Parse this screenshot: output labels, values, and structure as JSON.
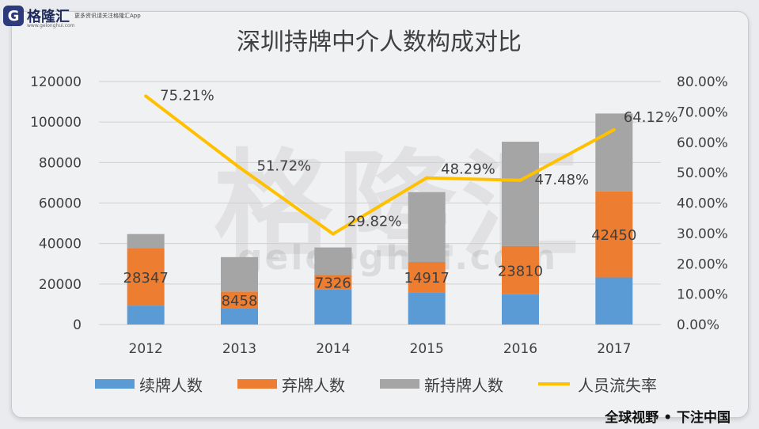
{
  "branding": {
    "logo_mark": "G",
    "logo_name": "格隆汇",
    "logo_tagline": "更多资讯请关注格隆汇App",
    "logo_url": "www.gelonghui.com",
    "watermark": "格隆汇",
    "watermark_url": "gelonghui.com",
    "slogan": "全球视野 • 下注中国"
  },
  "colors": {
    "renewal": "#5b9bd5",
    "abandon": "#ed7d31",
    "new": "#a5a5a5",
    "loss_rate": "#ffc000"
  },
  "chart_data": {
    "type": "bar",
    "stacked": true,
    "title": "深圳持牌中介人数构成对比",
    "categories": [
      "2012",
      "2013",
      "2014",
      "2015",
      "2016",
      "2017"
    ],
    "series": [
      {
        "name": "续牌人数",
        "type": "bar",
        "axis": "left",
        "values": [
          9343,
          7827,
          17242,
          15972,
          14956,
          23252
        ]
      },
      {
        "name": "弃牌人数",
        "type": "bar",
        "axis": "left",
        "values": [
          28347,
          8458,
          7326,
          14917,
          23810,
          42450
        ]
      },
      {
        "name": "新持牌人数",
        "type": "bar",
        "axis": "left",
        "values": [
          7000,
          17000,
          13500,
          34500,
          51500,
          38500
        ]
      },
      {
        "name": "人员流失率",
        "type": "line",
        "axis": "right",
        "values": [
          75.21,
          51.72,
          29.82,
          48.29,
          47.48,
          64.12
        ]
      }
    ],
    "bar_labels": [
      "28347",
      "8458",
      "7326",
      "14917",
      "23810",
      "42450"
    ],
    "line_labels": [
      "75.21%",
      "51.72%",
      "29.82%",
      "48.29%",
      "47.48%",
      "64.12%"
    ],
    "y_left": {
      "min": 0,
      "max": 120000,
      "ticks": [
        "0",
        "20000",
        "40000",
        "60000",
        "80000",
        "100000",
        "120000"
      ]
    },
    "y_right": {
      "min": 0,
      "max": 80,
      "ticks": [
        "0.00%",
        "10.00%",
        "20.00%",
        "30.00%",
        "40.00%",
        "50.00%",
        "60.00%",
        "70.00%",
        "80.00%"
      ]
    },
    "legend": {
      "placement": "bottom",
      "entries": [
        "续牌人数",
        "弃牌人数",
        "新持牌人数",
        "人员流失率"
      ]
    },
    "grid": true
  }
}
